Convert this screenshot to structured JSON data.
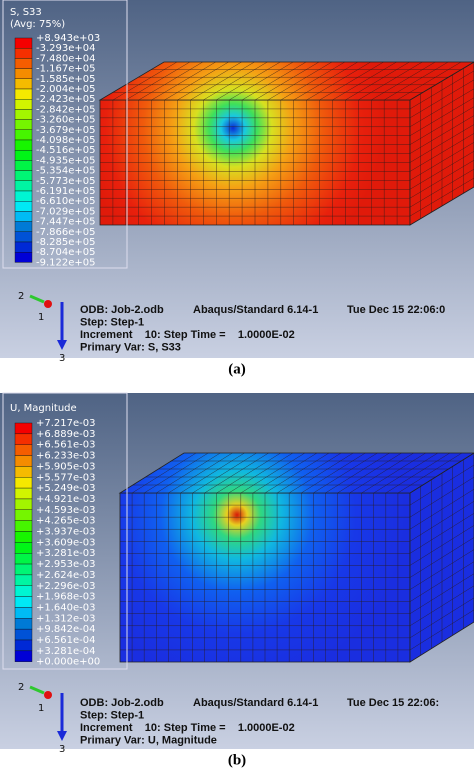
{
  "panels": [
    {
      "legend": {
        "title": "S, S33",
        "subtitle": "(Avg: 75%)",
        "values": [
          "+8.943e+03",
          "-3.293e+04",
          "-7.480e+04",
          "-1.167e+05",
          "-1.585e+05",
          "-2.004e+05",
          "-2.423e+05",
          "-2.842e+05",
          "-3.260e+05",
          "-3.679e+05",
          "-4.098e+05",
          "-4.516e+05",
          "-4.935e+05",
          "-5.354e+05",
          "-5.773e+05",
          "-6.191e+05",
          "-6.610e+05",
          "-7.029e+05",
          "-7.447e+05",
          "-7.866e+05",
          "-8.285e+05",
          "-8.704e+05",
          "-9.122e+05"
        ]
      },
      "info": {
        "odb": "ODB: Job-2.odb",
        "version": "Abaqus/Standard 6.14-1",
        "date": "Tue Dec 15 22:06:0",
        "step": "Step: Step-1",
        "increment": "Increment    10: Step Time =    1.0000E-02",
        "primary": "Primary Var: S, S33"
      },
      "axes": [
        "2",
        "1",
        "3"
      ],
      "caption": "(a)"
    },
    {
      "legend": {
        "title": "U, Magnitude",
        "values": [
          "+7.217e-03",
          "+6.889e-03",
          "+6.561e-03",
          "+6.233e-03",
          "+5.905e-03",
          "+5.577e-03",
          "+5.249e-03",
          "+4.921e-03",
          "+4.593e-03",
          "+4.265e-03",
          "+3.937e-03",
          "+3.609e-03",
          "+3.281e-03",
          "+2.953e-03",
          "+2.624e-03",
          "+2.296e-03",
          "+1.968e-03",
          "+1.640e-03",
          "+1.312e-03",
          "+9.842e-04",
          "+6.561e-04",
          "+3.281e-04",
          "+0.000e+00"
        ]
      },
      "info": {
        "odb": "ODB: Job-2.odb",
        "version": "Abaqus/Standard 6.14-1",
        "date": "Tue Dec 15 22:06:",
        "step": "Step: Step-1",
        "increment": "Increment    10: Step Time =    1.0000E-02",
        "primary": "Primary Var: U, Magnitude"
      },
      "axes": [
        "2",
        "1",
        "3"
      ],
      "caption": "(b)"
    }
  ]
}
